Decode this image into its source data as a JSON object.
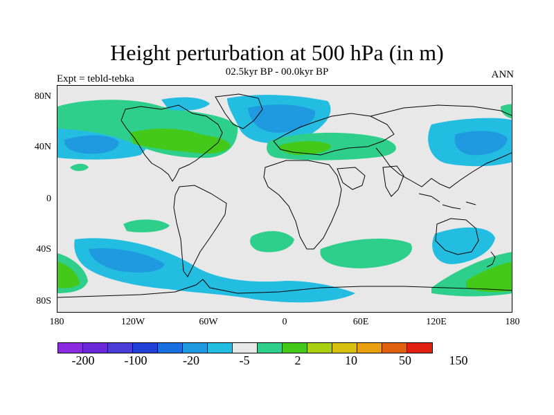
{
  "title": "Height perturbation at 500 hPa (in m)",
  "subtitle": "02.5kyr BP - 00.0kyr BP",
  "left_label": "Expt = tebld-tebka",
  "right_label": "ANN",
  "lat_labels": [
    "80N",
    "40N",
    "0",
    "40S",
    "80S"
  ],
  "lon_labels": [
    "180",
    "120W",
    "60W",
    "0",
    "60E",
    "120E",
    "180"
  ],
  "colorbar": {
    "colors": [
      "#8a2be2",
      "#6a28d8",
      "#4a3cd6",
      "#2040d8",
      "#1a6fe0",
      "#1f9ae0",
      "#22bde0",
      "#e8e8e8",
      "#2ecf8a",
      "#44c81a",
      "#a8d010",
      "#d8c010",
      "#e8a010",
      "#e06010",
      "#e02010"
    ],
    "labels": [
      "-200",
      "-100",
      "-20",
      "-5",
      "2",
      "10",
      "50",
      "150"
    ]
  },
  "map_colors": {
    "background": "#e8e8e8",
    "light_blue": "#22bde0",
    "mid_blue": "#1f9ae0",
    "dark_blue": "#1a6fe0",
    "teal": "#2ecf8a",
    "green": "#44c81a",
    "coast": "#000000"
  }
}
